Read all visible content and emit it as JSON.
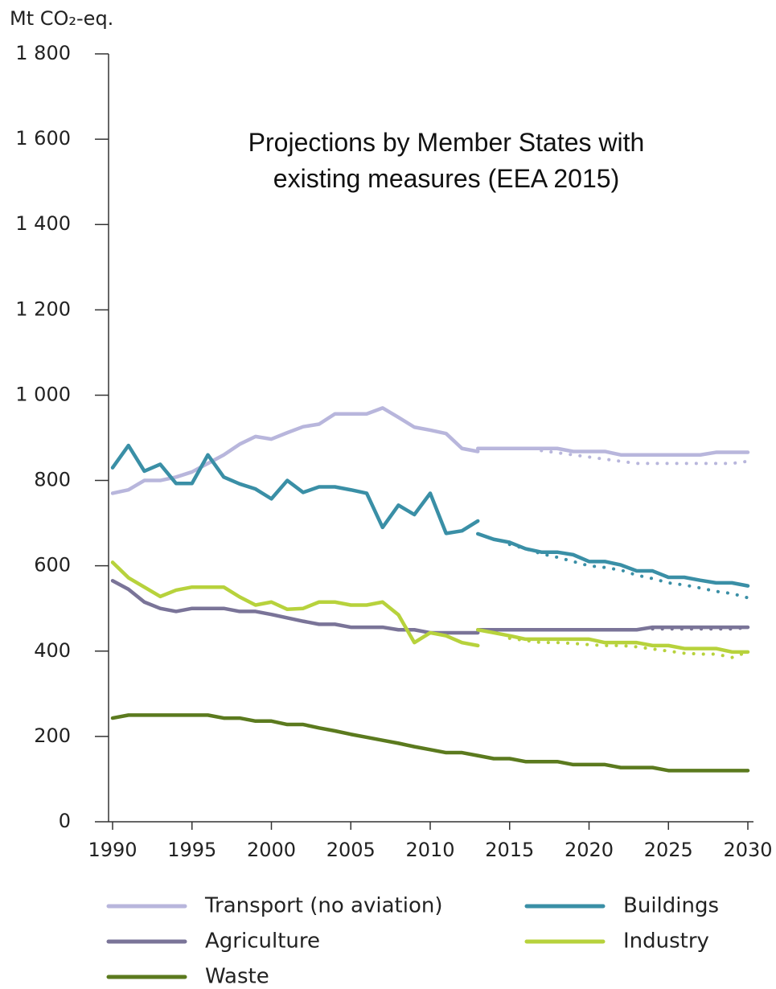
{
  "chart_data": {
    "type": "line",
    "y_label": "Mt CO₂-eq.",
    "annotation": "Projections by Member States with existing measures (EEA 2015)",
    "x": [
      1990,
      1991,
      1992,
      1993,
      1994,
      1995,
      1996,
      1997,
      1998,
      1999,
      2000,
      2001,
      2002,
      2003,
      2004,
      2005,
      2006,
      2007,
      2008,
      2009,
      2010,
      2011,
      2012,
      2013
    ],
    "x_projection": [
      2013,
      2014,
      2015,
      2016,
      2017,
      2018,
      2019,
      2020,
      2021,
      2022,
      2023,
      2024,
      2025,
      2026,
      2027,
      2028,
      2029,
      2030
    ],
    "xlim": [
      1990,
      2030
    ],
    "xticks": [
      1990,
      1995,
      2000,
      2005,
      2010,
      2015,
      2020,
      2025,
      2030
    ],
    "ylim": [
      0,
      1800
    ],
    "yticks": [
      0,
      200,
      400,
      600,
      800,
      {
        "value": 1000,
        "label": "1 000"
      },
      {
        "value": 1200,
        "label": "1 200"
      },
      {
        "value": 1400,
        "label": "1 400"
      },
      {
        "value": 1600,
        "label": "1 600"
      },
      {
        "value": 1800,
        "label": "1 800"
      }
    ],
    "series": [
      {
        "name": "Transport (no aviation)",
        "color": "#b8b6dc",
        "values": [
          770,
          778,
          800,
          800,
          808,
          820,
          840,
          860,
          885,
          903,
          897,
          912,
          926,
          932,
          956,
          956,
          956,
          970,
          948,
          925,
          918,
          910,
          875,
          868
        ],
        "projection": [
          875,
          875,
          875,
          875,
          875,
          875,
          868,
          868,
          868,
          860,
          860,
          860,
          860,
          860,
          860,
          866,
          866,
          866
        ],
        "projection_dotted": [
          null,
          null,
          null,
          null,
          870,
          865,
          860,
          855,
          850,
          845,
          840,
          840,
          840,
          840,
          840,
          840,
          840,
          845
        ]
      },
      {
        "name": "Buildings",
        "color": "#3a8fa6",
        "values": [
          830,
          882,
          822,
          838,
          793,
          793,
          860,
          808,
          792,
          780,
          757,
          800,
          772,
          785,
          785,
          778,
          770,
          690,
          742,
          720,
          770,
          676,
          682,
          705
        ],
        "projection": [
          675,
          662,
          655,
          640,
          632,
          632,
          626,
          610,
          610,
          602,
          588,
          588,
          573,
          573,
          566,
          560,
          560,
          553
        ],
        "projection_dotted": [
          null,
          null,
          650,
          640,
          628,
          620,
          610,
          600,
          596,
          590,
          578,
          570,
          560,
          555,
          548,
          540,
          535,
          525
        ]
      },
      {
        "name": "Agriculture",
        "color": "#7a7498",
        "values": [
          565,
          545,
          515,
          500,
          493,
          500,
          500,
          500,
          493,
          493,
          486,
          478,
          470,
          463,
          463,
          456,
          456,
          456,
          450,
          450,
          443,
          443,
          443,
          443
        ],
        "projection": [
          450,
          450,
          450,
          450,
          450,
          450,
          450,
          450,
          450,
          450,
          450,
          456,
          456,
          456,
          456,
          456,
          456,
          456
        ],
        "projection_dotted": [
          null,
          null,
          null,
          null,
          null,
          null,
          null,
          null,
          null,
          null,
          null,
          452,
          452,
          452,
          452,
          452,
          452,
          455
        ]
      },
      {
        "name": "Industry",
        "color": "#b7d23c",
        "values": [
          608,
          572,
          550,
          528,
          543,
          550,
          550,
          550,
          527,
          508,
          515,
          498,
          500,
          515,
          515,
          508,
          508,
          515,
          485,
          420,
          443,
          436,
          420,
          413
        ],
        "projection": [
          450,
          443,
          436,
          428,
          428,
          428,
          428,
          428,
          420,
          420,
          420,
          413,
          413,
          406,
          406,
          406,
          398,
          398
        ],
        "projection_dotted": [
          null,
          null,
          430,
          425,
          420,
          420,
          418,
          415,
          413,
          413,
          410,
          405,
          400,
          395,
          393,
          393,
          385,
          398
        ]
      },
      {
        "name": "Waste",
        "color": "#5b7a1e",
        "values": [
          243,
          250,
          250,
          250,
          250,
          250,
          250,
          243,
          243,
          236,
          236,
          228,
          228,
          220,
          213,
          205,
          198,
          191,
          184,
          176,
          169,
          162,
          162,
          155
        ],
        "projection": [
          155,
          148,
          148,
          141,
          141,
          141,
          134,
          134,
          134,
          127,
          127,
          127,
          120,
          120,
          120,
          120,
          120,
          120
        ]
      }
    ]
  }
}
